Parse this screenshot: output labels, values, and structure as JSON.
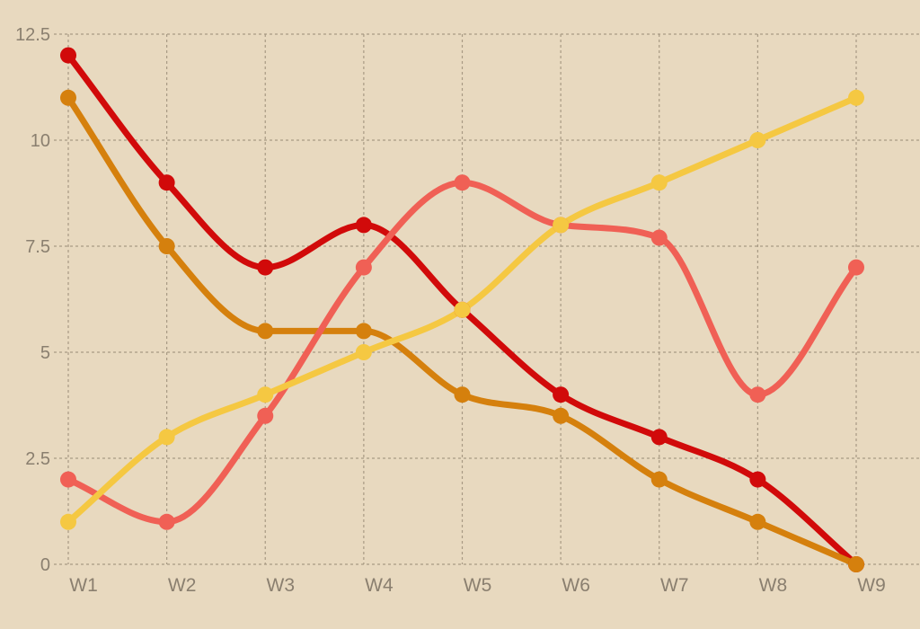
{
  "chart_data": {
    "type": "line",
    "categories": [
      "W1",
      "W2",
      "W3",
      "W4",
      "W5",
      "W6",
      "W7",
      "W8",
      "W9"
    ],
    "ylim": [
      0,
      12.5
    ],
    "yticks": [
      "0",
      "2.5",
      "5",
      "7.5",
      "10",
      "12.5"
    ],
    "ytick_values": [
      0,
      2.5,
      5,
      7.5,
      10,
      12.5
    ],
    "grid": true,
    "grid_style": "dashed",
    "legend": "none",
    "background_color": "#e8d9bf",
    "smooth": true,
    "series": [
      {
        "color": "#d10a0a",
        "values": [
          12,
          9,
          7,
          8,
          6,
          4,
          3,
          2,
          0
        ]
      },
      {
        "color": "#d5800d",
        "values": [
          11,
          7.5,
          5.5,
          5.5,
          4,
          3.5,
          2,
          1,
          0
        ]
      },
      {
        "color": "#f06055",
        "values": [
          2,
          1,
          3.5,
          7,
          9,
          8,
          7.7,
          4,
          7
        ]
      },
      {
        "color": "#f5c842",
        "values": [
          1,
          3,
          4,
          5,
          6,
          8,
          9,
          10,
          11
        ]
      }
    ]
  }
}
